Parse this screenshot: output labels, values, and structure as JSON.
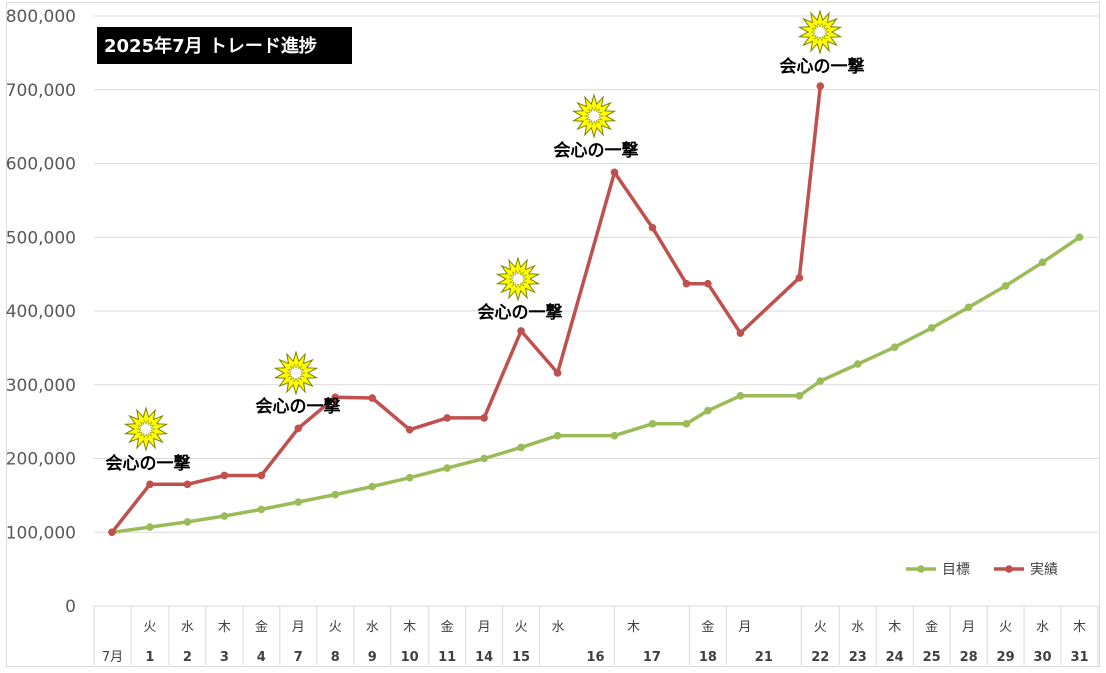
{
  "chart_data": {
    "type": "line",
    "title": "2025年7月 トレード進捗",
    "ylim": [
      0,
      800000
    ],
    "y_ticks": [
      "0",
      "100,000",
      "200,000",
      "300,000",
      "400,000",
      "500,000",
      "600,000",
      "700,000",
      "800,000"
    ],
    "grid": true,
    "legend_position": "bottom-right",
    "categories": [
      {
        "weekday": "",
        "day": "7月"
      },
      {
        "weekday": "火",
        "day": "1"
      },
      {
        "weekday": "水",
        "day": "2"
      },
      {
        "weekday": "木",
        "day": "3"
      },
      {
        "weekday": "金",
        "day": "4"
      },
      {
        "weekday": "月",
        "day": "7"
      },
      {
        "weekday": "火",
        "day": "8"
      },
      {
        "weekday": "水",
        "day": "9"
      },
      {
        "weekday": "木",
        "day": "10"
      },
      {
        "weekday": "金",
        "day": "11"
      },
      {
        "weekday": "月",
        "day": "14"
      },
      {
        "weekday": "火",
        "day": "15"
      },
      {
        "weekday": "水",
        "day": ""
      },
      {
        "weekday": "",
        "day": "16"
      },
      {
        "weekday": "",
        "day": ""
      },
      {
        "weekday": "木",
        "day": ""
      },
      {
        "weekday": "",
        "day": "17"
      },
      {
        "weekday": "金",
        "day": "18"
      },
      {
        "weekday": "月",
        "day": ""
      },
      {
        "weekday": "",
        "day": "21"
      },
      {
        "weekday": "",
        "day": ""
      },
      {
        "weekday": "火",
        "day": "22"
      },
      {
        "weekday": "水",
        "day": "23"
      },
      {
        "weekday": "木",
        "day": "24"
      },
      {
        "weekday": "金",
        "day": "25"
      },
      {
        "weekday": "月",
        "day": "28"
      },
      {
        "weekday": "火",
        "day": "29"
      },
      {
        "weekday": "水",
        "day": "30"
      },
      {
        "weekday": "木",
        "day": "31"
      }
    ],
    "series": [
      {
        "name": "目標",
        "color": "#9bbb59",
        "values": [
          100000,
          107000,
          114000,
          122000,
          131000,
          141000,
          151000,
          162000,
          174000,
          187000,
          200000,
          215000,
          231000,
          231000,
          null,
          247000,
          247000,
          265000,
          285000,
          285000,
          null,
          305000,
          328000,
          351000,
          377000,
          405000,
          434000,
          466000,
          500000
        ]
      },
      {
        "name": "実績",
        "color": "#c0504d",
        "values": [
          100000,
          165000,
          165000,
          177000,
          177000,
          241000,
          283000,
          282000,
          239000,
          255000,
          255000,
          373000,
          316000,
          588000,
          null,
          513000,
          437000,
          437000,
          370000,
          445000,
          null,
          705000,
          null,
          null,
          null,
          null,
          null,
          null,
          null
        ]
      }
    ],
    "annotations": [
      {
        "text": "会心の一撃",
        "icon": "burst-icon",
        "index": 1,
        "value": 165000
      },
      {
        "text": "会心の一撃",
        "icon": "burst-icon",
        "index": 5,
        "value": 241000
      },
      {
        "text": "会心の一撃",
        "icon": "burst-icon",
        "index": 11,
        "value": 373000
      },
      {
        "text": "会心の一撃",
        "icon": "burst-icon",
        "index": 13,
        "value": 588000
      },
      {
        "text": "会心の一撃",
        "icon": "burst-icon",
        "index": 21,
        "value": 705000
      }
    ]
  }
}
